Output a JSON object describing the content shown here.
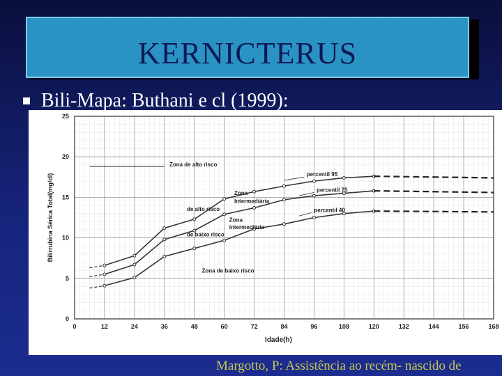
{
  "slide": {
    "title": "KERNICTERUS",
    "bullet": "Bili-Mapa: Buthani e cl (1999):",
    "footer": "Margotto, P: Assistência ao recém- nascido de"
  },
  "colors": {
    "background": "#16237a",
    "title_box": "#2a93c4",
    "footer_text": "#c8c850"
  },
  "chart_data": {
    "type": "line",
    "xlabel": "Idade(h)",
    "ylabel": "Bilirrubina Sérica Total(mg/dl)",
    "xlim": [
      0,
      168
    ],
    "ylim": [
      0,
      25
    ],
    "x_ticks": [
      "0",
      "12",
      "24",
      "36",
      "48",
      "60",
      "72",
      "84",
      "96",
      "108",
      "120",
      "132",
      "144",
      "156",
      "168"
    ],
    "y_ticks": [
      "0",
      "5",
      "10",
      "15",
      "20",
      "25"
    ],
    "grid": true,
    "series": [
      {
        "name": "percentil 95",
        "x": [
          12,
          24,
          36,
          48,
          60,
          72,
          84,
          96,
          108,
          120
        ],
        "y": [
          6.6,
          7.8,
          11.2,
          12.3,
          14.8,
          15.7,
          16.4,
          17.0,
          17.4,
          17.6
        ],
        "extension": {
          "x": [
            120,
            168
          ],
          "y": [
            17.6,
            17.4
          ]
        }
      },
      {
        "name": "percentil 75",
        "x": [
          12,
          24,
          36,
          48,
          60,
          72,
          84,
          96,
          108,
          120
        ],
        "y": [
          5.5,
          6.7,
          9.8,
          10.9,
          12.9,
          13.7,
          14.7,
          15.2,
          15.5,
          15.8
        ],
        "extension": {
          "x": [
            120,
            168
          ],
          "y": [
            15.8,
            15.6
          ]
        }
      },
      {
        "name": "percentil 40",
        "x": [
          12,
          24,
          36,
          48,
          60,
          72,
          84,
          96,
          108,
          120
        ],
        "y": [
          4.1,
          5.1,
          7.7,
          8.7,
          9.7,
          11.1,
          11.7,
          12.5,
          13.0,
          13.3
        ],
        "extension": {
          "x": [
            120,
            168
          ],
          "y": [
            13.3,
            13.2
          ]
        }
      }
    ],
    "annotations": [
      {
        "text": "Zona de alto risco",
        "x": 38,
        "y": 18.8
      },
      {
        "text": "percentil 95",
        "x": 93,
        "y": 17.6
      },
      {
        "text": "percentil 75",
        "x": 97,
        "y": 15.7
      },
      {
        "text": "Zona",
        "x": 64,
        "y": 15.3
      },
      {
        "text": "Intermediária",
        "x": 64,
        "y": 14.3
      },
      {
        "text": "de alto risco",
        "x": 45,
        "y": 13.3
      },
      {
        "text": "percentil 40",
        "x": 96,
        "y": 13.2
      },
      {
        "text": "Zona",
        "x": 62,
        "y": 12.0
      },
      {
        "text": "intermediária",
        "x": 62,
        "y": 11.1
      },
      {
        "text": "de baixo risco",
        "x": 45,
        "y": 10.2
      },
      {
        "text": "Zona de baixo risco",
        "x": 51,
        "y": 5.7
      }
    ]
  }
}
